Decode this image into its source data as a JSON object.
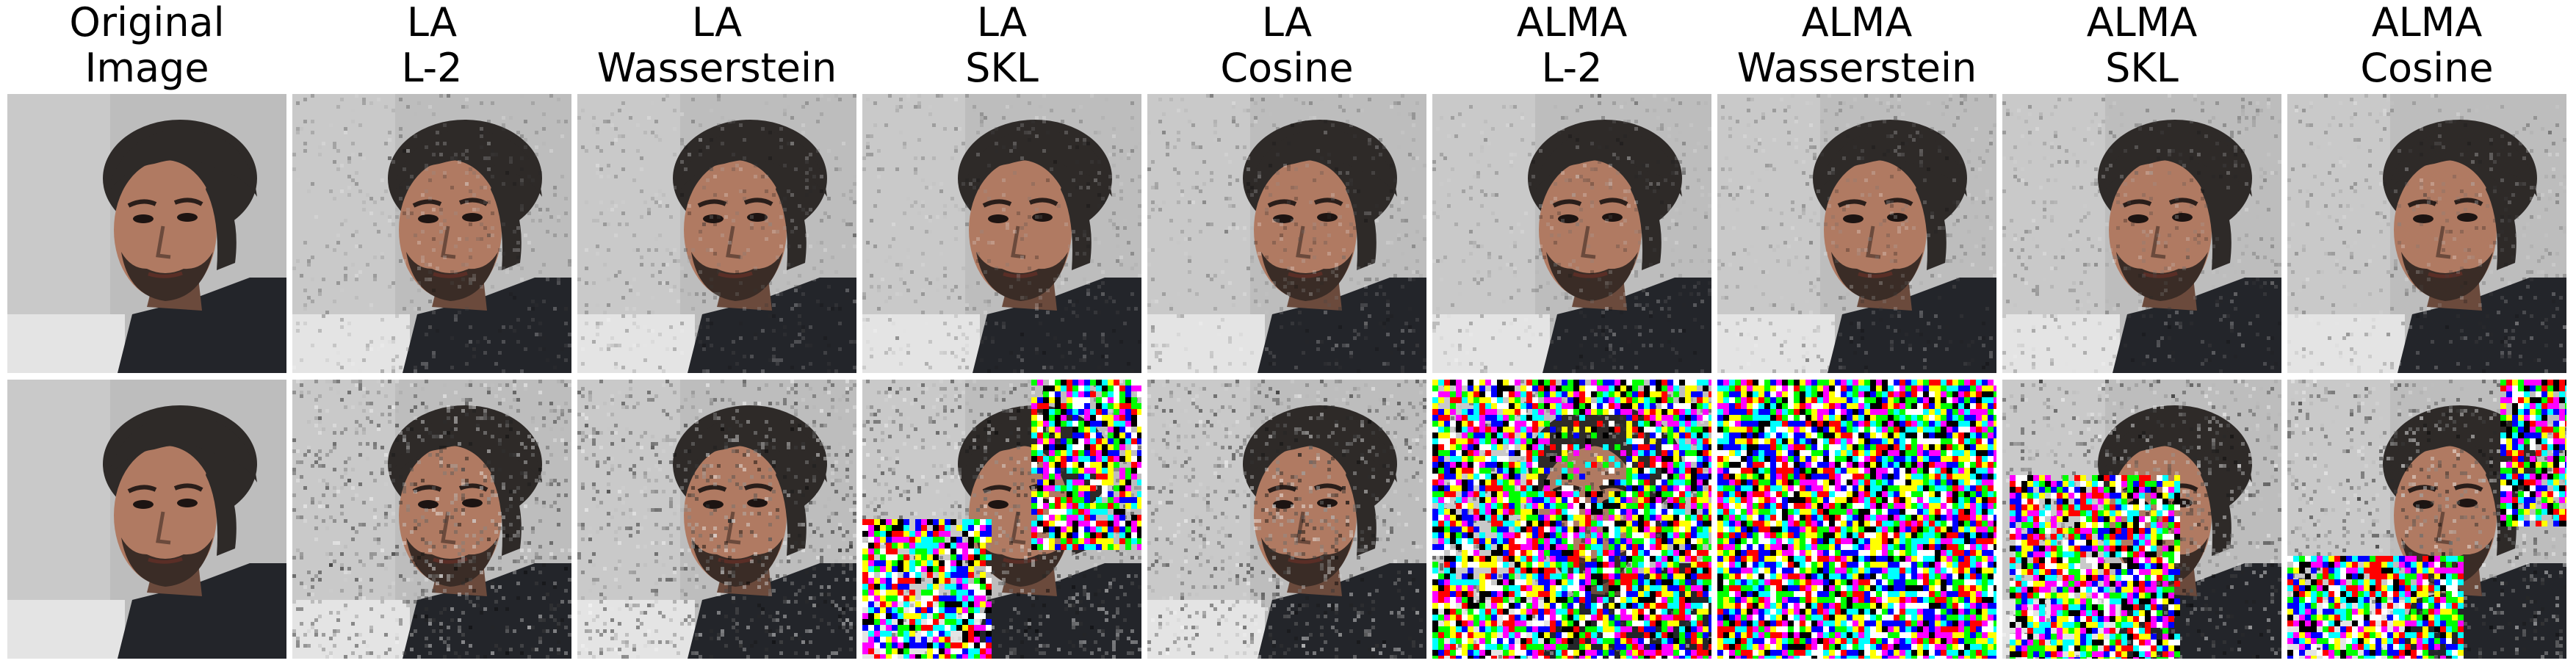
{
  "columns": [
    {
      "line1": "Original",
      "line2": "Image",
      "noise": 0,
      "colornoise": 0
    },
    {
      "line1": "LA",
      "line2": "L-2",
      "noise": 1,
      "colornoise": 0
    },
    {
      "line1": "LA",
      "line2": "Wasserstein",
      "noise": 1,
      "colornoise": 0
    },
    {
      "line1": "LA",
      "line2": "SKL",
      "noise": 1,
      "colornoise": 1
    },
    {
      "line1": "LA",
      "line2": "Cosine",
      "noise": 1,
      "colornoise": 0
    },
    {
      "line1": "ALMA",
      "line2": "L-2",
      "noise": 1,
      "colornoise": 0
    },
    {
      "line1": "ALMA",
      "line2": "Wasserstein",
      "noise": 1,
      "colornoise": 0
    },
    {
      "line1": "ALMA",
      "line2": "SKL",
      "noise": 1,
      "colornoise": 0
    },
    {
      "line1": "ALMA",
      "line2": "Cosine",
      "noise": 1,
      "colornoise": 0
    }
  ],
  "rows": [
    {
      "name": "row-top",
      "perturbation": "mild"
    },
    {
      "name": "row-bottom",
      "perturbation": "strong"
    }
  ],
  "palette": {
    "background": "#bdbdbd",
    "skin": "#b07a62",
    "hair": "#2e2a28",
    "jacket": "#23252a",
    "shadow": "#6b4a3c"
  }
}
